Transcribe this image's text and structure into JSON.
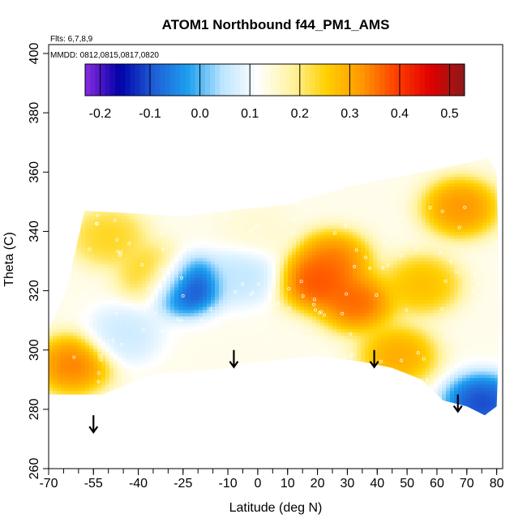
{
  "chart_data": {
    "type": "heatmap",
    "title": "ATOM1 Northbound f44_PM1_AMS",
    "annotations": [
      "Flts: 6,7,8,9",
      "MMDD: 0812,0815,0817,0820"
    ],
    "xlabel": "Latitude (deg N)",
    "ylabel": "Theta (C)",
    "xlim": [
      -70,
      82
    ],
    "ylim": [
      260,
      403
    ],
    "x_ticks": [
      -70,
      -55,
      -40,
      -25,
      -10,
      0,
      10,
      20,
      30,
      40,
      50,
      60,
      70,
      80
    ],
    "x_tick_labels": [
      "-70",
      "-55",
      "-40",
      "-25",
      "-10",
      "0",
      "10",
      "20",
      "30",
      "40",
      "50",
      "60",
      "70",
      "80"
    ],
    "y_ticks": [
      260,
      280,
      300,
      320,
      340,
      360,
      380,
      400
    ],
    "y_tick_labels": [
      "260",
      "280",
      "300",
      "320",
      "340",
      "360",
      "380",
      "400"
    ],
    "colorbar": {
      "range": [
        -0.23,
        0.53
      ],
      "ticks": [
        -0.2,
        -0.1,
        0.0,
        0.1,
        0.2,
        0.3,
        0.4,
        0.5
      ],
      "tick_labels": [
        "-0.2",
        "-0.1",
        "0.0",
        "0.1",
        "0.2",
        "0.3",
        "0.4",
        "0.5"
      ],
      "colors": [
        "#8a2be2",
        "#0000a8",
        "#1f5fd6",
        "#1ea0f0",
        "#bfe6ff",
        "#ffffff",
        "#fff3a0",
        "#ffd000",
        "#ff9a00",
        "#ff4000",
        "#e00000",
        "#8b1a1a"
      ]
    },
    "arrows_latitude": [
      -55,
      -8,
      39,
      67
    ],
    "coverage": {
      "top": [
        [
          -58,
          347
        ],
        [
          -40,
          346
        ],
        [
          -25,
          345
        ],
        [
          -10,
          347
        ],
        [
          0,
          348
        ],
        [
          10,
          349
        ],
        [
          20,
          352
        ],
        [
          30,
          355
        ],
        [
          40,
          357
        ],
        [
          50,
          359
        ],
        [
          60,
          361
        ],
        [
          70,
          363
        ],
        [
          77,
          365
        ]
      ],
      "bottom": [
        [
          -70,
          285
        ],
        [
          -52,
          285
        ],
        [
          -35,
          292
        ],
        [
          -20,
          293
        ],
        [
          -10,
          294
        ],
        [
          0,
          296
        ],
        [
          10,
          297
        ],
        [
          20,
          298
        ],
        [
          35,
          296
        ],
        [
          45,
          294
        ],
        [
          55,
          290
        ],
        [
          62,
          283
        ],
        [
          70,
          281
        ],
        [
          76,
          278
        ],
        [
          80,
          281
        ]
      ],
      "left_edge": [
        [
          -70,
          285
        ],
        [
          -70,
          307
        ],
        [
          -64,
          320
        ],
        [
          -59,
          345
        ]
      ],
      "right_edge": [
        [
          80,
          281
        ],
        [
          81,
          310
        ],
        [
          80,
          360
        ],
        [
          77,
          365
        ]
      ]
    },
    "features": [
      {
        "label": "strong-low",
        "lat": -25,
        "theta": 322,
        "value": -0.2
      },
      {
        "label": "high-plume-core",
        "lat": 20,
        "theta": 323,
        "value": 0.42
      },
      {
        "label": "high-plume-ridge",
        "lat": 25,
        "theta": 330,
        "value": 0.38
      },
      {
        "label": "high-plume-lower",
        "lat": 33,
        "theta": 316,
        "value": 0.4
      },
      {
        "label": "upper-right-high",
        "lat": 68,
        "theta": 348,
        "value": 0.36
      },
      {
        "label": "lower-left-high",
        "lat": -62,
        "theta": 295,
        "value": 0.38
      },
      {
        "label": "mid-right-high",
        "lat": 47,
        "theta": 298,
        "value": 0.33
      },
      {
        "label": "low-left",
        "lat": -45,
        "theta": 305,
        "value": 0.05
      },
      {
        "label": "low-mid",
        "lat": -5,
        "theta": 325,
        "value": 0.04
      },
      {
        "label": "low-right-edge",
        "lat": 75,
        "theta": 282,
        "value": -0.15
      },
      {
        "label": "upper-left-yellow",
        "lat": -50,
        "theta": 338,
        "value": 0.26
      },
      {
        "label": "upper-mid-light",
        "lat": 0,
        "theta": 340,
        "value": 0.15
      },
      {
        "label": "right-band-high",
        "lat": 55,
        "theta": 322,
        "value": 0.3
      },
      {
        "label": "yellow-shoulder",
        "lat": -33,
        "theta": 325,
        "value": 0.3
      }
    ]
  }
}
